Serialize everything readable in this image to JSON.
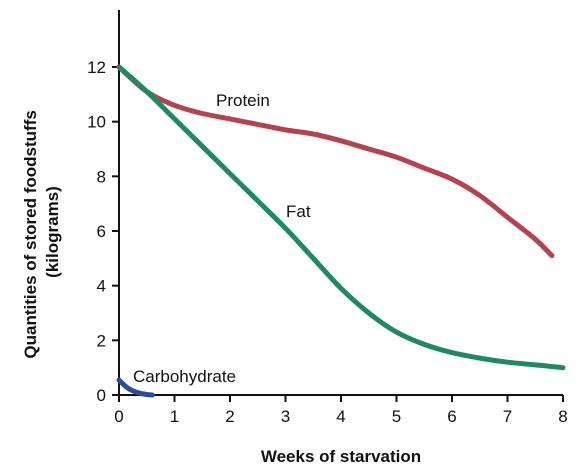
{
  "chart_data": {
    "type": "line",
    "xlabel": "Weeks of starvation",
    "ylabel": [
      "Quantities of stored foodstuffs",
      "(kilograms)"
    ],
    "xlim": [
      0,
      8
    ],
    "ylim": [
      0,
      14
    ],
    "xticks": [
      0,
      1,
      2,
      3,
      4,
      5,
      6,
      7,
      8
    ],
    "yticks": [
      0,
      2,
      4,
      6,
      8,
      10,
      12
    ],
    "grid": false,
    "legend": "none",
    "series": [
      {
        "name": "Protein",
        "color": "#b5434f",
        "points": [
          [
            0,
            12
          ],
          [
            0.5,
            11.1
          ],
          [
            1,
            10.6
          ],
          [
            1.5,
            10.3
          ],
          [
            2,
            10.1
          ],
          [
            2.5,
            9.9
          ],
          [
            3,
            9.7
          ],
          [
            3.5,
            9.55
          ],
          [
            4,
            9.3
          ],
          [
            4.5,
            9.0
          ],
          [
            5,
            8.7
          ],
          [
            5.5,
            8.3
          ],
          [
            6,
            7.9
          ],
          [
            6.5,
            7.3
          ],
          [
            7,
            6.5
          ],
          [
            7.5,
            5.7
          ],
          [
            7.8,
            5.1
          ]
        ]
      },
      {
        "name": "Fat",
        "color": "#1e8a63",
        "points": [
          [
            0,
            12
          ],
          [
            0.5,
            11.1
          ],
          [
            1,
            10.1
          ],
          [
            1.5,
            9.1
          ],
          [
            2,
            8.1
          ],
          [
            2.5,
            7.1
          ],
          [
            3,
            6.1
          ],
          [
            3.5,
            5.0
          ],
          [
            4,
            3.9
          ],
          [
            4.5,
            3.0
          ],
          [
            5,
            2.3
          ],
          [
            5.5,
            1.85
          ],
          [
            6,
            1.55
          ],
          [
            6.5,
            1.35
          ],
          [
            7,
            1.2
          ],
          [
            7.5,
            1.1
          ],
          [
            8,
            1.0
          ]
        ]
      },
      {
        "name": "Carbohydrate",
        "color": "#2c4a9a",
        "points": [
          [
            0,
            0.55
          ],
          [
            0.1,
            0.35
          ],
          [
            0.2,
            0.2
          ],
          [
            0.35,
            0.08
          ],
          [
            0.5,
            0.02
          ],
          [
            0.6,
            0.0
          ]
        ]
      }
    ]
  }
}
